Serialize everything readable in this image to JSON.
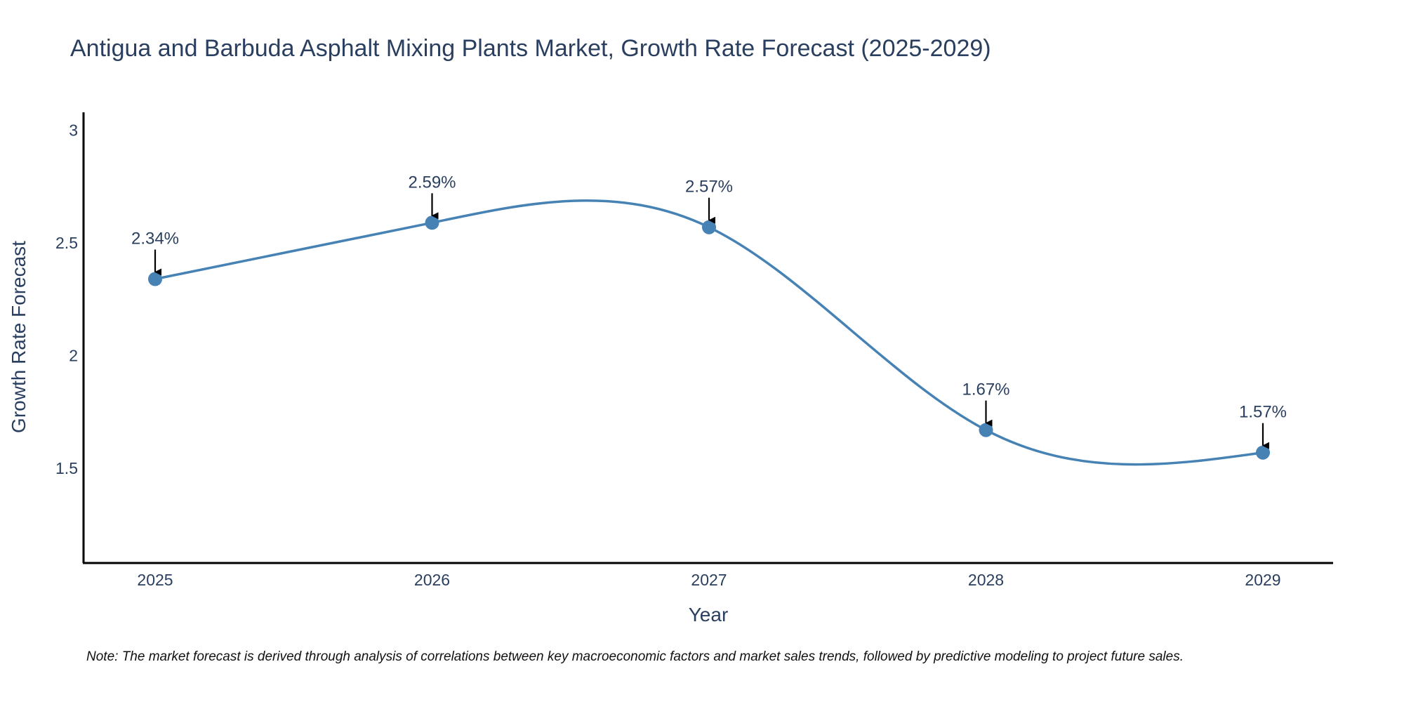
{
  "chart_data": {
    "type": "line",
    "title": "Antigua and Barbuda Asphalt Mixing Plants Market, Growth Rate Forecast (2025-2029)",
    "xlabel": "Year",
    "ylabel": "Growth Rate Forecast",
    "categories": [
      "2025",
      "2026",
      "2027",
      "2028",
      "2029"
    ],
    "series": [
      {
        "name": "Growth Rate Forecast",
        "values": [
          2.34,
          2.59,
          2.57,
          1.67,
          1.57
        ],
        "labels": [
          "2.34%",
          "2.59%",
          "2.57%",
          "1.67%",
          "1.57%"
        ]
      }
    ],
    "ylim": [
      1.08,
      3.08
    ],
    "yticks": [
      1.5,
      2,
      2.5,
      3
    ],
    "ytick_labels": [
      "1.5",
      "2",
      "2.5",
      "3"
    ],
    "line_shape": "spline",
    "grid": false,
    "note": "Note: The market forecast is derived through analysis of correlations between key macroeconomic factors and market sales trends, followed by predictive modeling to project future sales."
  },
  "colors": {
    "line": "#4682b4",
    "text": "#2a3f5f",
    "axis": "#000000",
    "arrow": "#000000"
  }
}
